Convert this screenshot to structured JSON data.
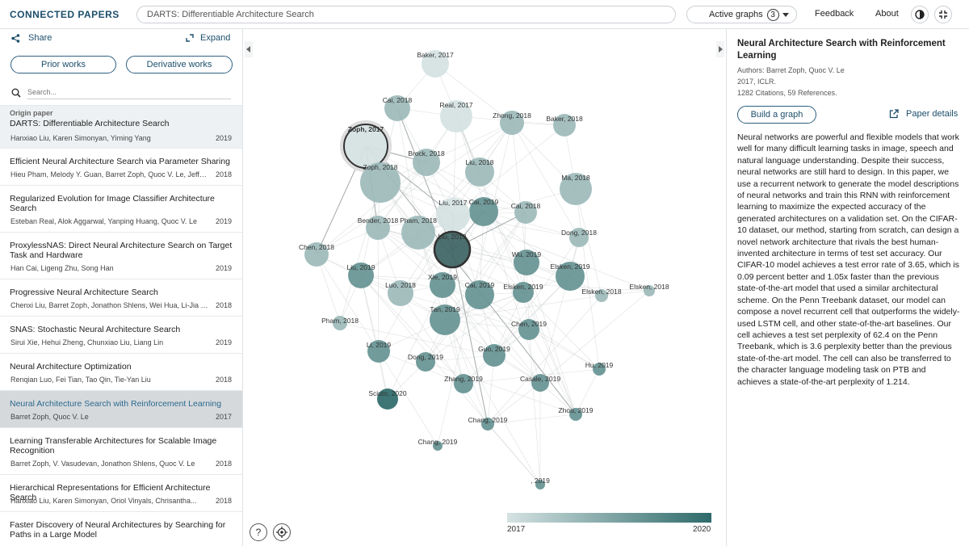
{
  "header": {
    "logo": "CONNECTED PAPERS",
    "search_value": "DARTS: Differentiable Architecture Search",
    "active_graphs_label": "Active graphs",
    "active_graphs_count": "3",
    "feedback": "Feedback",
    "about": "About"
  },
  "left": {
    "share": "Share",
    "expand": "Expand",
    "prior_works": "Prior works",
    "derivative_works": "Derivative works",
    "search_placeholder": "Search...",
    "origin_label": "Origin paper",
    "papers": [
      {
        "title": "DARTS: Differentiable Architecture Search",
        "authors": "Hanxiao Liu, Karen Simonyan, Yiming Yang",
        "year": "2019"
      },
      {
        "title": "Efficient Neural Architecture Search via Parameter Sharing",
        "authors": "Hieu Pham, Melody Y. Guan, Barret Zoph, Quoc V. Le, Jeff Dean",
        "year": "2018"
      },
      {
        "title": "Regularized Evolution for Image Classifier Architecture Search",
        "authors": "Esteban Real, Alok Aggarwal, Yanping Huang, Quoc V. Le",
        "year": "2019"
      },
      {
        "title": "ProxylessNAS: Direct Neural Architecture Search on Target Task and Hardware",
        "authors": "Han Cai, Ligeng Zhu, Song Han",
        "year": "2019"
      },
      {
        "title": "Progressive Neural Architecture Search",
        "authors": "Chenxi Liu, Barret Zoph, Jonathon Shlens, Wei Hua, Li-Jia Li, L...",
        "year": "2018"
      },
      {
        "title": "SNAS: Stochastic Neural Architecture Search",
        "authors": "Sirui Xie, Hehui Zheng, Chunxiao Liu, Liang Lin",
        "year": "2019"
      },
      {
        "title": "Neural Architecture Optimization",
        "authors": "Renqian Luo, Fei Tian, Tao Qin, Tie-Yan Liu",
        "year": "2018"
      },
      {
        "title": "Neural Architecture Search with Reinforcement Learning",
        "authors": "Barret Zoph, Quoc V. Le",
        "year": "2017"
      },
      {
        "title": "Learning Transferable Architectures for Scalable Image Recognition",
        "authors": "Barret Zoph, V. Vasudevan, Jonathon Shlens, Quoc V. Le",
        "year": "2018"
      },
      {
        "title": "Hierarchical Representations for Efficient Architecture Search",
        "authors": "Hanxiao Liu, Karen Simonyan, Oriol Vinyals, Chrisantha...",
        "year": "2018"
      },
      {
        "title": "Faster Discovery of Neural Architectures by Searching for Paths in a Large Model",
        "authors": "",
        "year": ""
      }
    ]
  },
  "graph": {
    "nodes": [
      {
        "label": "Baker, 2017",
        "year": 2017
      },
      {
        "label": "Cai, 2018",
        "year": 2018
      },
      {
        "label": "Real, 2017",
        "year": 2017
      },
      {
        "label": "Zhong, 2018",
        "year": 2018
      },
      {
        "label": "Baker, 2018",
        "year": 2018
      },
      {
        "label": "Zoph, 2017",
        "year": 2017,
        "selected": true
      },
      {
        "label": "Brock, 2018",
        "year": 2018
      },
      {
        "label": "Liu, 2018",
        "year": 2018
      },
      {
        "label": "Zoph, 2018",
        "year": 2018
      },
      {
        "label": "Ma, 2018",
        "year": 2018
      },
      {
        "label": "Cai, 2019",
        "year": 2019
      },
      {
        "label": "Liu, 2017",
        "year": 2017
      },
      {
        "label": "Cai, 2018",
        "year": 2018
      },
      {
        "label": "Bender, 2018",
        "year": 2018
      },
      {
        "label": "Pham, 2018",
        "year": 2018
      },
      {
        "label": "Dong, 2018",
        "year": 2018
      },
      {
        "label": "Chen, 2018",
        "year": 2018
      },
      {
        "label": "Liu, 2019",
        "year": 2019,
        "origin": true
      },
      {
        "label": "Wu, 2019",
        "year": 2019
      },
      {
        "label": "Liu, 2019",
        "year": 2019
      },
      {
        "label": "Elsken, 2019",
        "year": 2019
      },
      {
        "label": "Elsken, 2018",
        "year": 2018
      },
      {
        "label": "Elsken, 2018",
        "year": 2018
      },
      {
        "label": "Luo, 2018",
        "year": 2018
      },
      {
        "label": "Xie, 2019",
        "year": 2019
      },
      {
        "label": "Cai, 2019",
        "year": 2019
      },
      {
        "label": "Elsken, 2019",
        "year": 2019
      },
      {
        "label": "Pham, 2018",
        "year": 2018
      },
      {
        "label": "Tan, 2019",
        "year": 2019
      },
      {
        "label": "Chen, 2019",
        "year": 2019
      },
      {
        "label": "Li, 2019",
        "year": 2019
      },
      {
        "label": "Dong, 2019",
        "year": 2019
      },
      {
        "label": "Guo, 2019",
        "year": 2019
      },
      {
        "label": "Hu, 2019",
        "year": 2019
      },
      {
        "label": "Zhang, 2019",
        "year": 2019
      },
      {
        "label": "Casale, 2019",
        "year": 2019
      },
      {
        "label": "Sciuto, 2020",
        "year": 2020
      },
      {
        "label": "Zhou, 2019",
        "year": 2019
      },
      {
        "label": "Chang, 2019",
        "year": 2019
      },
      {
        "label": "Chang, 2019",
        "year": 2019
      },
      {
        "label": ", 2019",
        "year": 2019
      }
    ],
    "legend_min": "2017",
    "legend_max": "2020",
    "legend_colors": {
      "old": "#d5e2e2",
      "new": "#2e6a6a"
    }
  },
  "detail": {
    "title": "Neural Architecture Search with Reinforcement Learning",
    "authors": "Authors: Barret Zoph, Quoc V. Le",
    "venue": "2017, ICLR.",
    "citations": "1282 Citations, 59 References.",
    "build_graph": "Build a graph",
    "paper_details": "Paper details",
    "abstract": "Neural networks are powerful and flexible models that work well for many difficult learning tasks in image, speech and natural language understanding. Despite their success, neural networks are still hard to design. In this paper, we use a recurrent network to generate the model descriptions of neural networks and train this RNN with reinforcement learning to maximize the expected accuracy of the generated architectures on a validation set. On the CIFAR-10 dataset, our method, starting from scratch, can design a novel network architecture that rivals the best human-invented architecture in terms of test set accuracy. Our CIFAR-10 model achieves a test error rate of 3.65, which is 0.09 percent better and 1.05x faster than the previous state-of-the-art model that used a similar architectural scheme. On the Penn Treebank dataset, our model can compose a novel recurrent cell that outperforms the widely-used LSTM cell, and other state-of-the-art baselines. Our cell achieves a test set perplexity of 62.4 on the Penn Treebank, which is 3.6 perplexity better than the previous state-of-the-art model. The cell can also be transferred to the character language modeling task on PTB and achieves a state-of-the-art perplexity of 1.214."
  }
}
